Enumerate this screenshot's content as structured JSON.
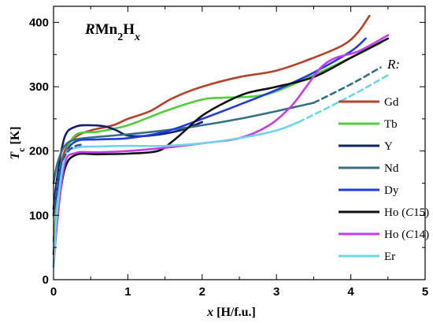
{
  "chart_data": {
    "type": "line",
    "title_parts": [
      {
        "text": "R",
        "style": "italic",
        "sub": false
      },
      {
        "text": "Mn",
        "style": "normal",
        "sub": false
      },
      {
        "text": "2",
        "style": "normal",
        "sub": true
      },
      {
        "text": "H",
        "style": "normal",
        "sub": false
      },
      {
        "text": "x",
        "style": "italic",
        "sub": true
      }
    ],
    "xlabel_parts": [
      {
        "text": "x",
        "style": "italic",
        "sub": false
      },
      {
        "text": " [H/f.u.]",
        "style": "normal",
        "sub": false
      }
    ],
    "ylabel_parts": [
      {
        "text": "T",
        "style": "italic",
        "sub": false
      },
      {
        "text": "c",
        "style": "normal",
        "sub": true
      },
      {
        "text": " [K]",
        "style": "normal",
        "sub": false
      }
    ],
    "xlim": [
      0,
      5
    ],
    "ylim": [
      0,
      425
    ],
    "xticks": [
      0,
      1,
      2,
      3,
      4,
      5
    ],
    "yticks": [
      0,
      100,
      200,
      300,
      400
    ],
    "minor_step_x": 0.5,
    "minor_step_y": 50,
    "grid": false,
    "legend": {
      "title": "R:",
      "placement": "right"
    },
    "series": [
      {
        "name": "Gd",
        "color": "#b5432c",
        "dashed": false,
        "x": [
          0,
          0.05,
          0.15,
          0.3,
          0.5,
          0.8,
          1.0,
          1.3,
          1.6,
          2.0,
          2.5,
          3.0,
          3.5,
          3.9,
          4.1,
          4.25
        ],
        "y": [
          110,
          150,
          200,
          222,
          232,
          240,
          250,
          262,
          282,
          300,
          315,
          325,
          345,
          365,
          385,
          410
        ]
      },
      {
        "name": "Tb",
        "color": "#52cc3c",
        "dashed": false,
        "x": [
          0,
          0.05,
          0.15,
          0.3,
          0.6,
          1.0,
          1.5,
          2.0,
          2.3,
          2.7,
          3.0,
          3.5,
          4.0,
          4.4
        ],
        "y": [
          60,
          120,
          190,
          225,
          230,
          240,
          262,
          280,
          283,
          285,
          293,
          318,
          345,
          368
        ]
      },
      {
        "name": "Y",
        "color": "#141e6e",
        "dashed": false,
        "x": [
          0,
          0.05,
          0.15,
          0.3,
          0.5,
          0.7,
          0.85,
          1.0,
          1.3,
          1.7,
          2.0
        ],
        "y": [
          110,
          160,
          222,
          238,
          240,
          238,
          232,
          224,
          224,
          232,
          245
        ]
      },
      {
        "name": "Nd",
        "color": "#347082",
        "dashed": false,
        "x": [
          0,
          0.05,
          0.15,
          0.3,
          0.6,
          1.0,
          1.5,
          2.0,
          2.5,
          3.0,
          3.5
        ],
        "y": [
          150,
          180,
          208,
          218,
          222,
          226,
          232,
          240,
          250,
          262,
          275
        ]
      },
      {
        "name": "Nd-ext",
        "color": "#347082",
        "dashed": true,
        "x": [
          3.5,
          3.8,
          4.1,
          4.4
        ],
        "y": [
          275,
          292,
          310,
          330
        ]
      },
      {
        "name": "Dy",
        "color": "#1f3be0",
        "dashed": false,
        "x": [
          0,
          0.05,
          0.15,
          0.3,
          0.6,
          1.0,
          1.5,
          2.0,
          2.5,
          3.0,
          3.5,
          4.0,
          4.2
        ],
        "y": [
          100,
          140,
          192,
          215,
          218,
          220,
          230,
          250,
          272,
          295,
          322,
          355,
          375
        ]
      },
      {
        "name": "Ho (C15)",
        "color": "#111111",
        "dashed": false,
        "x": [
          0,
          0.05,
          0.15,
          0.3,
          0.6,
          1.0,
          1.4,
          1.6,
          1.8,
          2.0,
          2.3,
          2.6,
          3.0,
          3.5,
          4.0,
          4.5
        ],
        "y": [
          40,
          100,
          172,
          194,
          195,
          196,
          200,
          215,
          235,
          255,
          275,
          290,
          300,
          315,
          345,
          375
        ]
      },
      {
        "name": "Ho (C14)",
        "color": "#c43de8",
        "dashed": false,
        "x": [
          0,
          0.05,
          0.15,
          0.3,
          0.6,
          1.0,
          1.5,
          2.0,
          2.5,
          2.9,
          3.2,
          3.4,
          3.6,
          3.8,
          4.1,
          4.5
        ],
        "y": [
          20,
          90,
          180,
          197,
          198,
          200,
          205,
          212,
          220,
          240,
          270,
          300,
          330,
          345,
          355,
          380
        ]
      },
      {
        "name": "Er",
        "color": "#6fd3ec",
        "dashed": false,
        "x": [
          0,
          0.05,
          0.15,
          0.3,
          0.6,
          1.0,
          1.5,
          2.0,
          2.5,
          3.0,
          3.3
        ],
        "y": [
          20,
          110,
          190,
          205,
          207,
          208,
          208,
          212,
          220,
          232,
          245
        ]
      },
      {
        "name": "Er-ext",
        "color": "#6fd3ec",
        "dashed": true,
        "x": [
          3.3,
          3.7,
          4.1,
          4.5
        ],
        "y": [
          245,
          268,
          292,
          318
        ]
      },
      {
        "name": "extra-dash",
        "color": "#2f5e8a",
        "dashed": true,
        "x": [
          0,
          0.05,
          0.1,
          0.2,
          0.3,
          0.4
        ],
        "y": [
          100,
          150,
          180,
          200,
          208,
          210
        ]
      }
    ],
    "legend_entries": [
      {
        "label_parts": [
          {
            "text": "Gd",
            "style": "normal"
          }
        ],
        "color": "#b5432c"
      },
      {
        "label_parts": [
          {
            "text": "Tb",
            "style": "normal"
          }
        ],
        "color": "#52cc3c"
      },
      {
        "label_parts": [
          {
            "text": "Y",
            "style": "normal"
          }
        ],
        "color": "#141e6e"
      },
      {
        "label_parts": [
          {
            "text": "Nd",
            "style": "normal"
          }
        ],
        "color": "#347082"
      },
      {
        "label_parts": [
          {
            "text": "Dy",
            "style": "normal"
          }
        ],
        "color": "#1f3be0"
      },
      {
        "label_parts": [
          {
            "text": "Ho (",
            "style": "normal"
          },
          {
            "text": "C",
            "style": "italic"
          },
          {
            "text": "15)",
            "style": "normal"
          }
        ],
        "color": "#111111"
      },
      {
        "label_parts": [
          {
            "text": "Ho (",
            "style": "normal"
          },
          {
            "text": "C",
            "style": "italic"
          },
          {
            "text": "14)",
            "style": "normal"
          }
        ],
        "color": "#c43de8"
      },
      {
        "label_parts": [
          {
            "text": "Er",
            "style": "normal"
          }
        ],
        "color": "#6fd3ec"
      }
    ]
  }
}
